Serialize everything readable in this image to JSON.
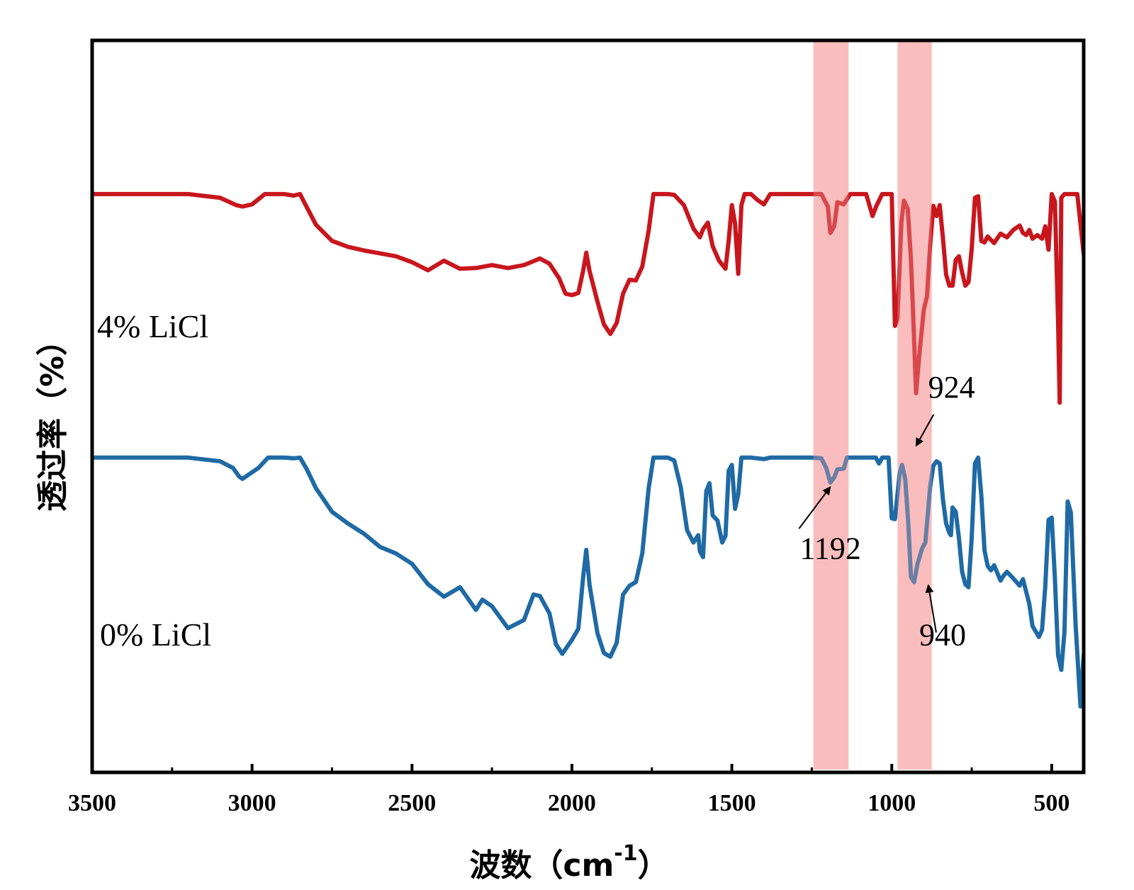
{
  "chart_data": {
    "type": "line",
    "xlabel": "波数（cm",
    "xlabel_sup": "-1",
    "xlabel_close": "）",
    "ylabel": "透过率（%）",
    "x_reversed": true,
    "xlim": [
      3500,
      400
    ],
    "ylim": [
      0,
      100
    ],
    "x_ticks": [
      3500,
      3000,
      2500,
      2000,
      1500,
      1000,
      500
    ],
    "x_tick_labels": [
      "3500",
      "3000",
      "2500",
      "2000",
      "1500",
      "1000",
      "500"
    ],
    "grid": false,
    "highlight_color": "#f6a7a7",
    "bands": [
      {
        "x1": 1245,
        "x2": 1135
      },
      {
        "x1": 982,
        "x2": 875
      }
    ],
    "series": [
      {
        "name": "4%  LiCl",
        "color": "#c8161d",
        "points": [
          [
            3500,
            79
          ],
          [
            3200,
            79
          ],
          [
            3100,
            78.5
          ],
          [
            3050,
            77.5
          ],
          [
            3030,
            77.3
          ],
          [
            3000,
            77.6
          ],
          [
            2960,
            79
          ],
          [
            2900,
            79
          ],
          [
            2870,
            78.8
          ],
          [
            2850,
            79
          ],
          [
            2830,
            77.3
          ],
          [
            2800,
            74.8
          ],
          [
            2750,
            72.6
          ],
          [
            2700,
            71.8
          ],
          [
            2650,
            71.3
          ],
          [
            2600,
            70.9
          ],
          [
            2550,
            70.5
          ],
          [
            2500,
            69.7
          ],
          [
            2450,
            68.6
          ],
          [
            2400,
            69.9
          ],
          [
            2350,
            68.8
          ],
          [
            2300,
            68.9
          ],
          [
            2250,
            69.3
          ],
          [
            2200,
            68.9
          ],
          [
            2150,
            69.3
          ],
          [
            2100,
            70.2
          ],
          [
            2070,
            69.5
          ],
          [
            2040,
            67.5
          ],
          [
            2020,
            65.4
          ],
          [
            2000,
            65.2
          ],
          [
            1980,
            65.5
          ],
          [
            1965,
            68.5
          ],
          [
            1955,
            71
          ],
          [
            1945,
            68.5
          ],
          [
            1920,
            64.3
          ],
          [
            1900,
            61.2
          ],
          [
            1880,
            59.9
          ],
          [
            1860,
            61.4
          ],
          [
            1840,
            65.4
          ],
          [
            1820,
            67.3
          ],
          [
            1800,
            67.2
          ],
          [
            1780,
            69.1
          ],
          [
            1760,
            74
          ],
          [
            1745,
            79
          ],
          [
            1700,
            79
          ],
          [
            1680,
            78.9
          ],
          [
            1650,
            77.5
          ],
          [
            1620,
            74.3
          ],
          [
            1600,
            73.1
          ],
          [
            1590,
            74.2
          ],
          [
            1575,
            75.1
          ],
          [
            1560,
            71.9
          ],
          [
            1540,
            69.9
          ],
          [
            1520,
            68.8
          ],
          [
            1510,
            72.6
          ],
          [
            1500,
            77.5
          ],
          [
            1490,
            75
          ],
          [
            1480,
            68.1
          ],
          [
            1470,
            77.5
          ],
          [
            1460,
            79
          ],
          [
            1440,
            79
          ],
          [
            1420,
            78.2
          ],
          [
            1400,
            77.6
          ],
          [
            1380,
            79
          ],
          [
            1340,
            79
          ],
          [
            1300,
            79
          ],
          [
            1250,
            79
          ],
          [
            1220,
            79
          ],
          [
            1200,
            77.3
          ],
          [
            1192,
            73.7
          ],
          [
            1180,
            74.6
          ],
          [
            1170,
            77.9
          ],
          [
            1150,
            77.6
          ],
          [
            1130,
            79
          ],
          [
            1110,
            79
          ],
          [
            1080,
            79
          ],
          [
            1060,
            76
          ],
          [
            1048,
            77.4
          ],
          [
            1030,
            79
          ],
          [
            1000,
            79
          ],
          [
            990,
            61
          ],
          [
            982,
            62
          ],
          [
            970,
            75.1
          ],
          [
            962,
            78.1
          ],
          [
            950,
            77
          ],
          [
            940,
            70.1
          ],
          [
            930,
            59
          ],
          [
            924,
            51.8
          ],
          [
            915,
            56.5
          ],
          [
            900,
            63.2
          ],
          [
            890,
            65
          ],
          [
            880,
            72
          ],
          [
            870,
            77.4
          ],
          [
            860,
            76
          ],
          [
            850,
            77.5
          ],
          [
            840,
            73
          ],
          [
            830,
            68
          ],
          [
            820,
            66.5
          ],
          [
            810,
            66.5
          ],
          [
            800,
            70
          ],
          [
            790,
            70.5
          ],
          [
            780,
            68.3
          ],
          [
            770,
            66.5
          ],
          [
            760,
            67
          ],
          [
            750,
            71.5
          ],
          [
            740,
            78.5
          ],
          [
            730,
            78.7
          ],
          [
            720,
            72.6
          ],
          [
            710,
            72.4
          ],
          [
            700,
            73.2
          ],
          [
            680,
            72.3
          ],
          [
            660,
            73.6
          ],
          [
            640,
            73.1
          ],
          [
            620,
            74.1
          ],
          [
            600,
            74.7
          ],
          [
            590,
            73.7
          ],
          [
            580,
            73.4
          ],
          [
            570,
            74.1
          ],
          [
            560,
            72.9
          ],
          [
            545,
            73.4
          ],
          [
            530,
            72.9
          ],
          [
            520,
            74.6
          ],
          [
            510,
            71.4
          ],
          [
            500,
            79
          ],
          [
            490,
            78
          ],
          [
            480,
            61.5
          ],
          [
            475,
            50.5
          ],
          [
            470,
            78.5
          ],
          [
            460,
            79
          ],
          [
            440,
            79
          ],
          [
            420,
            79
          ],
          [
            400,
            70.8
          ]
        ]
      },
      {
        "name": "0%  LiCl",
        "color": "#1f6aa5",
        "points": [
          [
            3500,
            43
          ],
          [
            3200,
            43
          ],
          [
            3100,
            42.5
          ],
          [
            3060,
            41.6
          ],
          [
            3040,
            40.4
          ],
          [
            3030,
            40.1
          ],
          [
            3000,
            41
          ],
          [
            2980,
            41.6
          ],
          [
            2950,
            43
          ],
          [
            2900,
            43
          ],
          [
            2870,
            42.9
          ],
          [
            2850,
            43
          ],
          [
            2830,
            41.5
          ],
          [
            2800,
            38.8
          ],
          [
            2750,
            35.6
          ],
          [
            2700,
            34
          ],
          [
            2650,
            32.6
          ],
          [
            2600,
            30.8
          ],
          [
            2550,
            29.9
          ],
          [
            2500,
            28.5
          ],
          [
            2450,
            25.7
          ],
          [
            2400,
            24
          ],
          [
            2350,
            25.3
          ],
          [
            2300,
            22.2
          ],
          [
            2280,
            23.6
          ],
          [
            2250,
            22.7
          ],
          [
            2200,
            19.7
          ],
          [
            2150,
            20.8
          ],
          [
            2120,
            24.3
          ],
          [
            2100,
            24.1
          ],
          [
            2070,
            21.7
          ],
          [
            2050,
            17.5
          ],
          [
            2030,
            16.2
          ],
          [
            2000,
            18.1
          ],
          [
            1980,
            19.6
          ],
          [
            1965,
            26.6
          ],
          [
            1955,
            30.4
          ],
          [
            1945,
            25.6
          ],
          [
            1920,
            19
          ],
          [
            1900,
            16.3
          ],
          [
            1880,
            15.8
          ],
          [
            1860,
            17.7
          ],
          [
            1840,
            24.3
          ],
          [
            1820,
            25.5
          ],
          [
            1800,
            26
          ],
          [
            1780,
            29.9
          ],
          [
            1760,
            38.8
          ],
          [
            1745,
            43
          ],
          [
            1700,
            43
          ],
          [
            1680,
            42.6
          ],
          [
            1660,
            39
          ],
          [
            1640,
            33.1
          ],
          [
            1620,
            31.4
          ],
          [
            1605,
            32.4
          ],
          [
            1600,
            30.2
          ],
          [
            1590,
            29.4
          ],
          [
            1580,
            38.4
          ],
          [
            1570,
            39.5
          ],
          [
            1560,
            35.1
          ],
          [
            1545,
            34.4
          ],
          [
            1530,
            31.4
          ],
          [
            1520,
            32.3
          ],
          [
            1510,
            41.2
          ],
          [
            1500,
            42
          ],
          [
            1490,
            36
          ],
          [
            1480,
            38
          ],
          [
            1470,
            43
          ],
          [
            1440,
            43
          ],
          [
            1400,
            42.8
          ],
          [
            1380,
            43
          ],
          [
            1300,
            43
          ],
          [
            1250,
            43
          ],
          [
            1220,
            42.9
          ],
          [
            1205,
            41.6
          ],
          [
            1192,
            39.6
          ],
          [
            1180,
            40.3
          ],
          [
            1170,
            41.4
          ],
          [
            1150,
            41.5
          ],
          [
            1140,
            43
          ],
          [
            1100,
            43
          ],
          [
            1050,
            43
          ],
          [
            1040,
            42.2
          ],
          [
            1030,
            43
          ],
          [
            1010,
            43
          ],
          [
            1000,
            34.7
          ],
          [
            990,
            34.6
          ],
          [
            975,
            41
          ],
          [
            968,
            42
          ],
          [
            958,
            40.1
          ],
          [
            948,
            33.8
          ],
          [
            940,
            26.7
          ],
          [
            930,
            26
          ],
          [
            920,
            28.4
          ],
          [
            905,
            30.6
          ],
          [
            895,
            31.4
          ],
          [
            880,
            39
          ],
          [
            870,
            41.9
          ],
          [
            860,
            42.5
          ],
          [
            850,
            42.2
          ],
          [
            840,
            37.3
          ],
          [
            830,
            34
          ],
          [
            820,
            32.7
          ],
          [
            815,
            32.4
          ],
          [
            810,
            36.2
          ],
          [
            800,
            35.6
          ],
          [
            790,
            32
          ],
          [
            780,
            27.4
          ],
          [
            770,
            25.7
          ],
          [
            760,
            25.3
          ],
          [
            750,
            32
          ],
          [
            740,
            42.2
          ],
          [
            730,
            43
          ],
          [
            720,
            37.8
          ],
          [
            710,
            30.3
          ],
          [
            700,
            28.2
          ],
          [
            690,
            27.6
          ],
          [
            680,
            28.3
          ],
          [
            660,
            26.2
          ],
          [
            650,
            26.9
          ],
          [
            640,
            27.4
          ],
          [
            620,
            26.5
          ],
          [
            600,
            25.5
          ],
          [
            590,
            26.4
          ],
          [
            570,
            23
          ],
          [
            560,
            20
          ],
          [
            540,
            18.5
          ],
          [
            530,
            19.5
          ],
          [
            520,
            25.4
          ],
          [
            510,
            34.5
          ],
          [
            500,
            34.8
          ],
          [
            490,
            26.5
          ],
          [
            480,
            16
          ],
          [
            470,
            14
          ],
          [
            460,
            19.2
          ],
          [
            450,
            37
          ],
          [
            440,
            35.5
          ],
          [
            425,
            20
          ],
          [
            410,
            9
          ],
          [
            400,
            16
          ]
        ]
      }
    ],
    "annotations": [
      {
        "text": "1192",
        "label_at": [
          1192,
          29.2
        ],
        "arrow_tail": [
          1290,
          33.3
        ],
        "arrow_head": [
          1192,
          39
        ]
      },
      {
        "text": "924",
        "label_at": [
          813,
          51.2
        ],
        "arrow_tail": [
          869,
          48.9
        ],
        "arrow_head": [
          924,
          44.6
        ]
      },
      {
        "text": "940",
        "label_at": [
          841,
          17.4
        ],
        "arrow_tail": [
          861,
          19.1
        ],
        "arrow_head": [
          886,
          25.6
        ]
      }
    ]
  }
}
